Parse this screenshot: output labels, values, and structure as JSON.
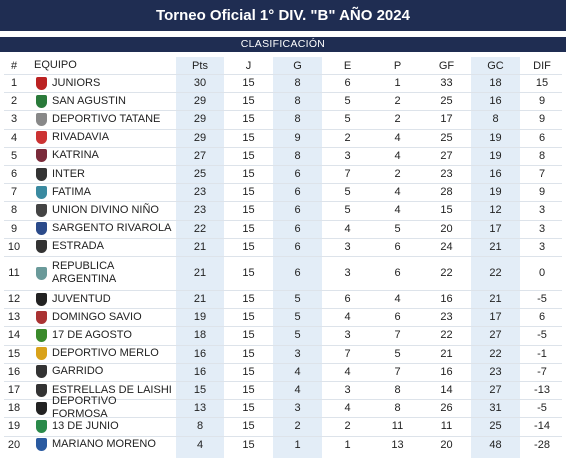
{
  "header": {
    "title": "Torneo Oficial 1° DIV. \"B\" AÑO 2024",
    "subtitle": "CLASIFICACIÓN"
  },
  "table": {
    "columns": [
      "#",
      "EQUIPO",
      "Pts",
      "J",
      "G",
      "E",
      "P",
      "GF",
      "GC",
      "DIF"
    ],
    "rows": [
      [
        1,
        "JUNIORS",
        30,
        15,
        8,
        6,
        1,
        33,
        18,
        15
      ],
      [
        2,
        "SAN AGUSTIN",
        29,
        15,
        8,
        5,
        2,
        25,
        16,
        9
      ],
      [
        3,
        "DEPORTIVO TATANE",
        29,
        15,
        8,
        5,
        2,
        17,
        8,
        9
      ],
      [
        4,
        "RIVADAVIA",
        29,
        15,
        9,
        2,
        4,
        25,
        19,
        6
      ],
      [
        5,
        "KATRINA",
        27,
        15,
        8,
        3,
        4,
        27,
        19,
        8
      ],
      [
        6,
        "INTER",
        25,
        15,
        6,
        7,
        2,
        23,
        16,
        7
      ],
      [
        7,
        "FATIMA",
        23,
        15,
        6,
        5,
        4,
        28,
        19,
        9
      ],
      [
        8,
        "UNION DIVINO NIÑO",
        23,
        15,
        6,
        5,
        4,
        15,
        12,
        3
      ],
      [
        9,
        "SARGENTO RIVAROLA",
        22,
        15,
        6,
        4,
        5,
        20,
        17,
        3
      ],
      [
        10,
        "ESTRADA",
        21,
        15,
        6,
        3,
        6,
        24,
        21,
        3
      ],
      [
        11,
        "REPUBLICA ARGENTINA",
        21,
        15,
        6,
        3,
        6,
        22,
        22,
        0
      ],
      [
        12,
        "JUVENTUD",
        21,
        15,
        5,
        6,
        4,
        16,
        21,
        -5
      ],
      [
        13,
        "DOMINGO SAVIO",
        19,
        15,
        5,
        4,
        6,
        23,
        17,
        6
      ],
      [
        14,
        "17 DE AGOSTO",
        18,
        15,
        5,
        3,
        7,
        22,
        27,
        -5
      ],
      [
        15,
        "DEPORTIVO MERLO",
        16,
        15,
        3,
        7,
        5,
        21,
        22,
        -1
      ],
      [
        16,
        "GARRIDO",
        16,
        15,
        4,
        4,
        7,
        16,
        23,
        -7
      ],
      [
        17,
        "ESTRELLAS DE LAISHI",
        15,
        15,
        4,
        3,
        8,
        14,
        27,
        -13
      ],
      [
        18,
        "DEPORTIVO FORMOSA",
        13,
        15,
        3,
        4,
        8,
        26,
        31,
        -5
      ],
      [
        19,
        "13 DE JUNIO",
        8,
        15,
        2,
        2,
        11,
        11,
        25,
        -14
      ],
      [
        20,
        "MARIANO MORENO",
        4,
        15,
        1,
        1,
        13,
        20,
        48,
        -28
      ]
    ]
  }
}
